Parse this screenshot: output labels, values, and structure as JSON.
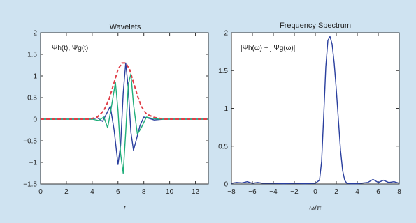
{
  "colors": {
    "background": "#cfe3f1",
    "plot_bg": "#ffffff",
    "blue": "#2a3f9e",
    "green": "#1fae7a",
    "red_dashed": "#e0404a"
  },
  "chart_data": [
    {
      "type": "line",
      "title": "Wavelets",
      "xlabel": "t",
      "ylabel": "",
      "annotation": "Ψh(t), Ψg(t)",
      "xlim": [
        0,
        13
      ],
      "ylim": [
        -1.5,
        2
      ],
      "xticks": [
        0,
        2,
        4,
        6,
        8,
        10,
        12
      ],
      "yticks": [
        -1.5,
        -1,
        -0.5,
        0,
        0.5,
        1,
        1.5,
        2
      ],
      "grid": false,
      "series": [
        {
          "color": "#2a3f9e",
          "style": "solid",
          "x": [
            0,
            4.0,
            4.4,
            4.8,
            5.1,
            5.4,
            5.7,
            6.0,
            6.2,
            6.4,
            6.6,
            6.8,
            7.0,
            7.2,
            7.4,
            7.7,
            8.0,
            8.4,
            8.8,
            9.5,
            13
          ],
          "y": [
            0,
            0,
            0.03,
            -0.05,
            0.12,
            0.3,
            -0.25,
            -1.05,
            -0.6,
            0.6,
            1.3,
            0.7,
            -0.3,
            -0.72,
            -0.5,
            -0.15,
            0.05,
            0.02,
            -0.02,
            0,
            0
          ]
        },
        {
          "color": "#1fae7a",
          "style": "solid",
          "x": [
            0,
            4.0,
            4.5,
            4.9,
            5.2,
            5.5,
            5.8,
            6.0,
            6.2,
            6.4,
            6.6,
            6.8,
            7.0,
            7.2,
            7.5,
            7.8,
            8.2,
            8.6,
            9.2,
            13
          ],
          "y": [
            0,
            0,
            -0.03,
            0.05,
            -0.2,
            0.3,
            0.85,
            0.2,
            -0.8,
            -1.25,
            -0.3,
            0.8,
            1.05,
            0.35,
            -0.35,
            -0.2,
            0.05,
            0.02,
            0,
            0
          ]
        },
        {
          "color": "#e0404a",
          "style": "dashed",
          "x": [
            0,
            3.8,
            4.4,
            4.9,
            5.3,
            5.7,
            6.0,
            6.3,
            6.6,
            6.9,
            7.2,
            7.5,
            7.8,
            8.2,
            8.8,
            9.6,
            13
          ],
          "y": [
            0,
            0,
            0.05,
            0.2,
            0.45,
            0.85,
            1.15,
            1.3,
            1.3,
            1.15,
            0.85,
            0.55,
            0.3,
            0.12,
            0.04,
            0,
            0
          ]
        }
      ]
    },
    {
      "type": "line",
      "title": "Frequency Spectrum",
      "xlabel": "ω/π",
      "ylabel": "",
      "annotation": "|Ψh(ω) + j Ψg(ω)|",
      "xlim": [
        -8,
        8
      ],
      "ylim": [
        0,
        2
      ],
      "xticks": [
        -8,
        -6,
        -4,
        -2,
        0,
        2,
        4,
        6,
        8
      ],
      "yticks": [
        0,
        0.5,
        1,
        1.5,
        2
      ],
      "grid": false,
      "series": [
        {
          "color": "#2a3f9e",
          "style": "solid",
          "x": [
            -8,
            -7.5,
            -7,
            -6.5,
            -6,
            -5.5,
            -5,
            -4,
            -3,
            -2,
            -1,
            0,
            0.4,
            0.6,
            0.8,
            1.0,
            1.2,
            1.4,
            1.6,
            1.8,
            2.0,
            2.2,
            2.4,
            2.6,
            2.8,
            3.0,
            3.4,
            4.0,
            5.0,
            5.5,
            6.0,
            6.5,
            7.0,
            7.5,
            8
          ],
          "y": [
            0.01,
            0.02,
            0.015,
            0.03,
            0.01,
            0.02,
            0.01,
            0.01,
            0.005,
            0.01,
            0.005,
            0.01,
            0.05,
            0.3,
            0.9,
            1.55,
            1.9,
            1.95,
            1.85,
            1.6,
            1.25,
            0.85,
            0.45,
            0.18,
            0.05,
            0.01,
            0.005,
            0.005,
            0.02,
            0.06,
            0.02,
            0.05,
            0.02,
            0.03,
            0.01
          ]
        }
      ]
    }
  ]
}
